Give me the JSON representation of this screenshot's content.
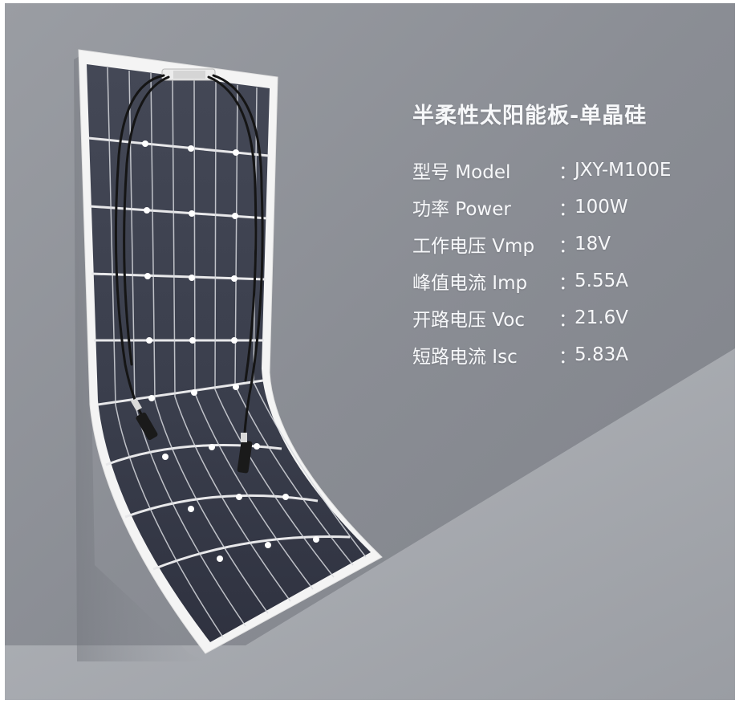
{
  "product": {
    "title": "半柔性太阳能板-单晶硅",
    "specs": [
      {
        "label": "型号 Model",
        "value": "JXY-M100E"
      },
      {
        "label": "功率 Power",
        "value": "100W"
      },
      {
        "label": "工作电压 Vmp",
        "value": "18V"
      },
      {
        "label": "峰值电流 Imp",
        "value": "5.55A"
      },
      {
        "label": "开路电压 Voc",
        "value": "21.6V"
      },
      {
        "label": "短路电流 Isc",
        "value": "5.83A"
      }
    ],
    "separator": "："
  },
  "colors": {
    "wall": "#8d9097",
    "floor": "#a9acb2",
    "panel_cell": "#3b3f4d",
    "panel_frame": "#f5f5f5",
    "cable": "#161616",
    "text": "#f7f8fa"
  }
}
